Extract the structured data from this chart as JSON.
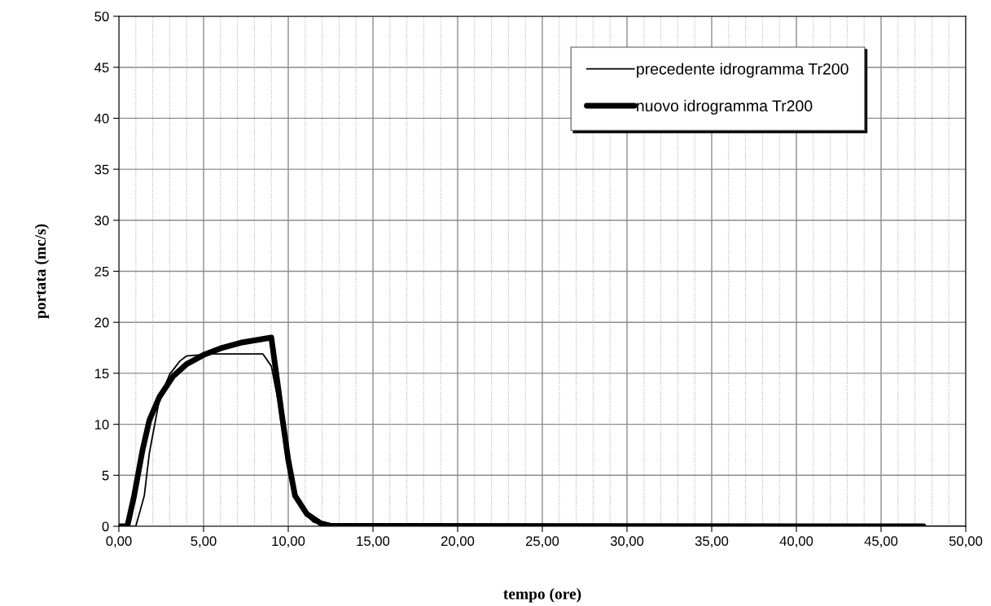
{
  "chart_data": {
    "type": "line",
    "xlabel": "tempo (ore)",
    "ylabel": "portata (mc/s)",
    "xlim": [
      0,
      50
    ],
    "ylim": [
      0,
      50
    ],
    "xticks": [
      {
        "value": 0,
        "label": "0,00"
      },
      {
        "value": 1,
        "label": null
      },
      {
        "value": 2,
        "label": null
      },
      {
        "value": 3,
        "label": null
      },
      {
        "value": 4,
        "label": null
      },
      {
        "value": 5,
        "label": "5,00"
      },
      {
        "value": 6,
        "label": null
      },
      {
        "value": 7,
        "label": null
      },
      {
        "value": 8,
        "label": null
      },
      {
        "value": 9,
        "label": null
      },
      {
        "value": 10,
        "label": "10,00"
      },
      {
        "value": 11,
        "label": null
      },
      {
        "value": 12,
        "label": null
      },
      {
        "value": 13,
        "label": null
      },
      {
        "value": 14,
        "label": null
      },
      {
        "value": 15,
        "label": "15,00"
      },
      {
        "value": 16,
        "label": null
      },
      {
        "value": 17,
        "label": null
      },
      {
        "value": 18,
        "label": null
      },
      {
        "value": 19,
        "label": null
      },
      {
        "value": 20,
        "label": "20,00"
      },
      {
        "value": 21,
        "label": null
      },
      {
        "value": 22,
        "label": null
      },
      {
        "value": 23,
        "label": null
      },
      {
        "value": 24,
        "label": null
      },
      {
        "value": 25,
        "label": "25,00"
      },
      {
        "value": 26,
        "label": null
      },
      {
        "value": 27,
        "label": null
      },
      {
        "value": 28,
        "label": null
      },
      {
        "value": 29,
        "label": null
      },
      {
        "value": 30,
        "label": "30,00"
      },
      {
        "value": 31,
        "label": null
      },
      {
        "value": 32,
        "label": null
      },
      {
        "value": 33,
        "label": null
      },
      {
        "value": 34,
        "label": null
      },
      {
        "value": 35,
        "label": "35,00"
      },
      {
        "value": 36,
        "label": null
      },
      {
        "value": 37,
        "label": null
      },
      {
        "value": 38,
        "label": null
      },
      {
        "value": 39,
        "label": null
      },
      {
        "value": 40,
        "label": "40,00"
      },
      {
        "value": 41,
        "label": null
      },
      {
        "value": 42,
        "label": null
      },
      {
        "value": 43,
        "label": null
      },
      {
        "value": 44,
        "label": null
      },
      {
        "value": 45,
        "label": "45,00"
      },
      {
        "value": 46,
        "label": null
      },
      {
        "value": 47,
        "label": null
      },
      {
        "value": 48,
        "label": null
      },
      {
        "value": 49,
        "label": null
      },
      {
        "value": 50,
        "label": "50,00"
      }
    ],
    "yticks": [
      0,
      5,
      10,
      15,
      20,
      25,
      30,
      35,
      40,
      45,
      50
    ],
    "grid": true,
    "legend": "top right",
    "marker": "none",
    "series": [
      {
        "name": "precedente idrogramma Tr200",
        "color": "#000000",
        "x": [
          0,
          1.0,
          1.5,
          1.8,
          2.4,
          3.0,
          3.6,
          4.0,
          5.5,
          8.5,
          9.0,
          9.5,
          10.0,
          10.5,
          11.0,
          11.5,
          12.0,
          13.0,
          50
        ],
        "values": [
          0,
          0,
          3.0,
          7.2,
          12.5,
          14.9,
          16.2,
          16.7,
          16.9,
          16.9,
          15.7,
          11.5,
          6.5,
          3.0,
          1.2,
          0.4,
          0.2,
          0,
          0
        ]
      },
      {
        "name": "nuovo idrogramma Tr200",
        "color": "#000000",
        "x": [
          0,
          0.5,
          0.9,
          1.4,
          1.8,
          2.4,
          3.2,
          4.0,
          5.0,
          6.1,
          7.2,
          9.0,
          9.6,
          10.0,
          10.4,
          11.1,
          11.9,
          12.5,
          47.5
        ],
        "values": [
          0,
          0,
          3.0,
          7.5,
          10.4,
          12.7,
          14.7,
          15.9,
          16.8,
          17.5,
          18.0,
          18.5,
          11.2,
          6.5,
          3.0,
          1.2,
          0.3,
          0.05,
          0
        ]
      }
    ]
  }
}
